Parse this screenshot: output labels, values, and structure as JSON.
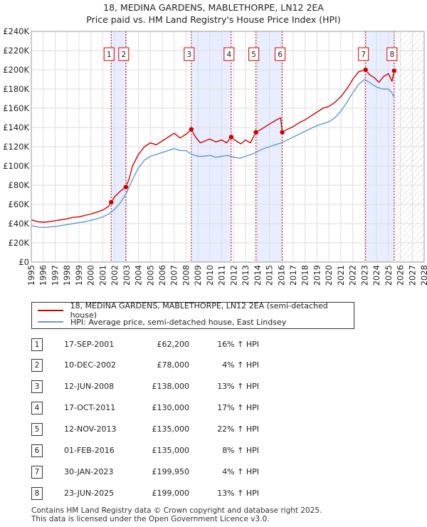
{
  "title_line1": "18, MEDINA GARDENS, MABLETHORPE, LN12 2EA",
  "title_line2": "Price paid vs. HM Land Registry's House Price Index (HPI)",
  "colors": {
    "property": "#cc0000",
    "hpi": "#6699cc",
    "shade": "#e8eeff",
    "marker_line": "#cc0000"
  },
  "chart_data": {
    "type": "line",
    "xlim": [
      1995,
      2028
    ],
    "ylim": [
      0,
      240000
    ],
    "yticks": [
      0,
      20000,
      40000,
      60000,
      80000,
      100000,
      120000,
      140000,
      160000,
      180000,
      200000,
      220000,
      240000
    ],
    "ytick_labels": [
      "£0",
      "£20K",
      "£40K",
      "£60K",
      "£80K",
      "£100K",
      "£120K",
      "£140K",
      "£160K",
      "£180K",
      "£200K",
      "£220K",
      "£240K"
    ],
    "xticks": [
      1995,
      1996,
      1997,
      1998,
      1999,
      2000,
      2001,
      2002,
      2003,
      2004,
      2005,
      2006,
      2007,
      2008,
      2009,
      2010,
      2011,
      2012,
      2013,
      2014,
      2015,
      2016,
      2017,
      2018,
      2019,
      2020,
      2021,
      2022,
      2023,
      2024,
      2025,
      2026,
      2027,
      2028
    ],
    "future_from": 2025.5,
    "shaded_ranges": [
      [
        2001.71,
        2002.94
      ],
      [
        2008.44,
        2011.79
      ],
      [
        2013.87,
        2016.08
      ],
      [
        2023.08,
        2025.48
      ]
    ],
    "series": [
      {
        "name": "18, MEDINA GARDENS, MABLETHORPE, LN12 2EA (semi-detached house)",
        "x": [
          1995.0,
          1995.5,
          1996.0,
          1996.5,
          1997.0,
          1997.5,
          1998.0,
          1998.5,
          1999.0,
          1999.5,
          2000.0,
          2000.5,
          2001.0,
          2001.5,
          2001.71,
          2002.0,
          2002.5,
          2002.94,
          2003.2,
          2003.5,
          2004.0,
          2004.5,
          2005.0,
          2005.5,
          2006.0,
          2006.5,
          2007.0,
          2007.5,
          2008.0,
          2008.44,
          2008.8,
          2009.2,
          2009.6,
          2010.0,
          2010.5,
          2011.0,
          2011.4,
          2011.79,
          2012.2,
          2012.6,
          2013.0,
          2013.4,
          2013.87,
          2014.3,
          2014.8,
          2015.2,
          2015.6,
          2015.95,
          2016.08,
          2016.5,
          2017.0,
          2017.5,
          2018.0,
          2018.5,
          2019.0,
          2019.5,
          2020.0,
          2020.5,
          2021.0,
          2021.5,
          2022.0,
          2022.5,
          2023.08,
          2023.4,
          2023.8,
          2024.2,
          2024.6,
          2025.0,
          2025.3,
          2025.48
        ],
        "values": [
          44000,
          42000,
          41500,
          42000,
          43000,
          44000,
          45000,
          46500,
          47000,
          48500,
          50000,
          52000,
          54000,
          58000,
          62200,
          68000,
          74000,
          78000,
          86000,
          100000,
          112000,
          120000,
          124000,
          122000,
          126000,
          130000,
          134000,
          129000,
          133000,
          138000,
          130000,
          124000,
          126000,
          128000,
          125000,
          127000,
          124000,
          130000,
          126000,
          123000,
          127000,
          124000,
          135000,
          138000,
          142000,
          145000,
          148000,
          150000,
          135000,
          138000,
          141000,
          145000,
          148000,
          152000,
          156000,
          160000,
          162000,
          166000,
          172000,
          180000,
          190000,
          198000,
          199950,
          195000,
          192000,
          187000,
          193000,
          196000,
          188000,
          199000
        ]
      },
      {
        "name": "HPI: Average price, semi-detached house, East Lindsey",
        "x": [
          1995.0,
          1995.5,
          1996.0,
          1996.5,
          1997.0,
          1997.5,
          1998.0,
          1998.5,
          1999.0,
          1999.5,
          2000.0,
          2000.5,
          2001.0,
          2001.5,
          2002.0,
          2002.5,
          2003.0,
          2003.5,
          2004.0,
          2004.5,
          2005.0,
          2005.5,
          2006.0,
          2006.5,
          2007.0,
          2007.5,
          2008.0,
          2008.5,
          2009.0,
          2009.5,
          2010.0,
          2010.5,
          2011.0,
          2011.5,
          2012.0,
          2012.5,
          2013.0,
          2013.5,
          2014.0,
          2014.5,
          2015.0,
          2015.5,
          2016.0,
          2016.5,
          2017.0,
          2017.5,
          2018.0,
          2018.5,
          2019.0,
          2019.5,
          2020.0,
          2020.5,
          2021.0,
          2021.5,
          2022.0,
          2022.5,
          2023.0,
          2023.5,
          2024.0,
          2024.5,
          2025.0,
          2025.3,
          2025.5
        ],
        "values": [
          38000,
          36500,
          36000,
          36500,
          37000,
          38000,
          39000,
          40000,
          41000,
          42000,
          43500,
          45000,
          47000,
          50000,
          55000,
          62000,
          72000,
          86000,
          98000,
          106000,
          110000,
          112000,
          114000,
          116000,
          118000,
          116000,
          116000,
          112000,
          110000,
          110000,
          111000,
          109000,
          110000,
          111000,
          109000,
          108000,
          110000,
          112000,
          115000,
          118000,
          120000,
          122000,
          124000,
          127000,
          130000,
          133000,
          136000,
          139000,
          142000,
          144000,
          146000,
          150000,
          157000,
          166000,
          176000,
          185000,
          190000,
          186000,
          182000,
          180000,
          180000,
          176000,
          171000
        ]
      }
    ],
    "sales": [
      {
        "n": "1",
        "x": 2001.71,
        "price": 62200
      },
      {
        "n": "2",
        "x": 2002.94,
        "price": 78000
      },
      {
        "n": "3",
        "x": 2008.44,
        "price": 138000
      },
      {
        "n": "4",
        "x": 2011.79,
        "price": 130000
      },
      {
        "n": "5",
        "x": 2013.87,
        "price": 135000
      },
      {
        "n": "6",
        "x": 2016.08,
        "price": 135000
      },
      {
        "n": "7",
        "x": 2023.08,
        "price": 199950
      },
      {
        "n": "8",
        "x": 2025.48,
        "price": 199000
      }
    ]
  },
  "legend": {
    "property_label": "18, MEDINA GARDENS, MABLETHORPE, LN12 2EA (semi-detached house)",
    "hpi_label": "HPI: Average price, semi-detached house, East Lindsey"
  },
  "transactions": [
    {
      "n": "1",
      "date": "17-SEP-2001",
      "price": "£62,200",
      "hpi": "16% ↑ HPI"
    },
    {
      "n": "2",
      "date": "10-DEC-2002",
      "price": "£78,000",
      "hpi": "4% ↑ HPI"
    },
    {
      "n": "3",
      "date": "12-JUN-2008",
      "price": "£138,000",
      "hpi": "13% ↑ HPI"
    },
    {
      "n": "4",
      "date": "17-OCT-2011",
      "price": "£130,000",
      "hpi": "17% ↑ HPI"
    },
    {
      "n": "5",
      "date": "12-NOV-2013",
      "price": "£135,000",
      "hpi": "22% ↑ HPI"
    },
    {
      "n": "6",
      "date": "01-FEB-2016",
      "price": "£135,000",
      "hpi": "8% ↑ HPI"
    },
    {
      "n": "7",
      "date": "30-JAN-2023",
      "price": "£199,950",
      "hpi": "4% ↑ HPI"
    },
    {
      "n": "8",
      "date": "23-JUN-2025",
      "price": "£199,000",
      "hpi": "13% ↑ HPI"
    }
  ],
  "footer_line1": "Contains HM Land Registry data © Crown copyright and database right 2025.",
  "footer_line2": "This data is licensed under the Open Government Licence v3.0."
}
